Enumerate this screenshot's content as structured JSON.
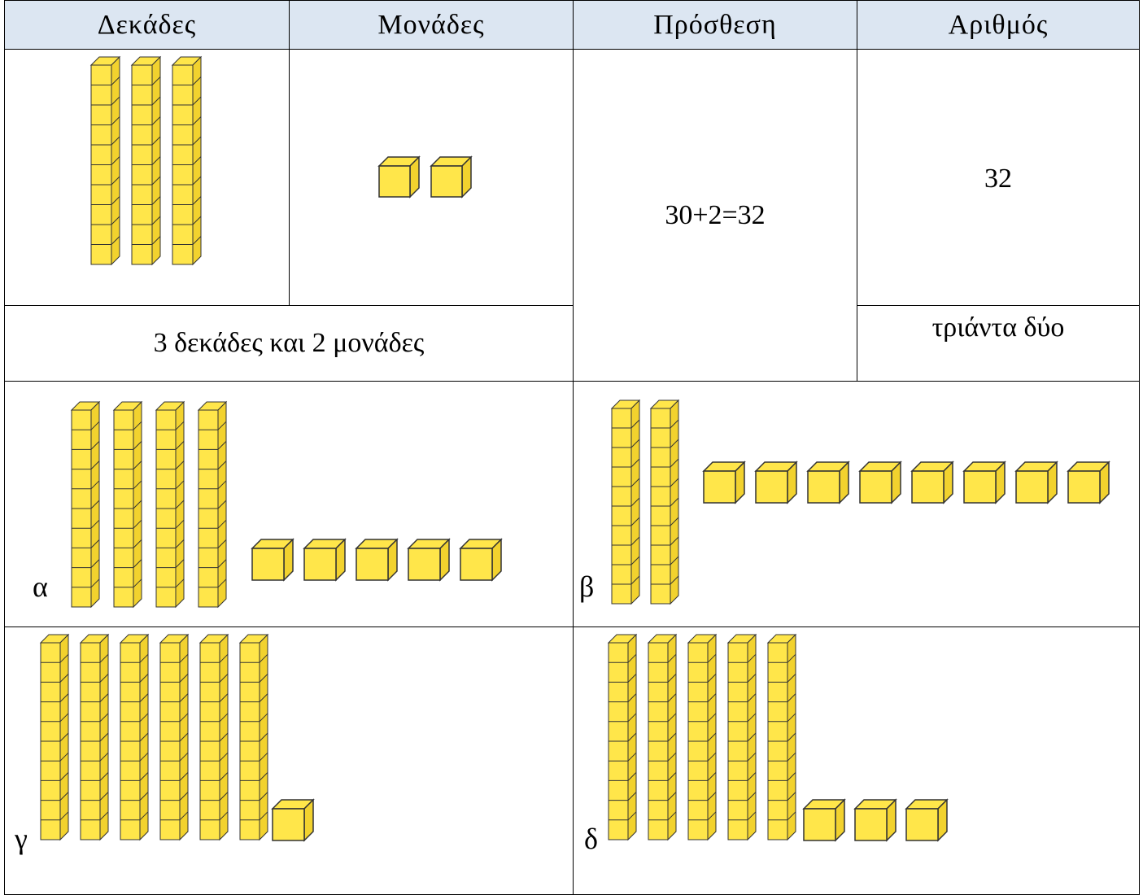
{
  "header": {
    "columns": [
      "Δεκάδες",
      "Μονάδες",
      "Πρόσθεση",
      "Αριθμός"
    ]
  },
  "example": {
    "tens": 3,
    "ones": 2,
    "description": "3 δεκάδες και 2 μονάδες",
    "addition": "30+2=32",
    "number": "32",
    "words": "τριάντα δύο"
  },
  "exercises": [
    {
      "label": "α",
      "tens": 4,
      "ones": 5
    },
    {
      "label": "β",
      "tens": 2,
      "ones": 8
    },
    {
      "label": "γ",
      "tens": 6,
      "ones": 1
    },
    {
      "label": "δ",
      "tens": 5,
      "ones": 3
    }
  ]
}
